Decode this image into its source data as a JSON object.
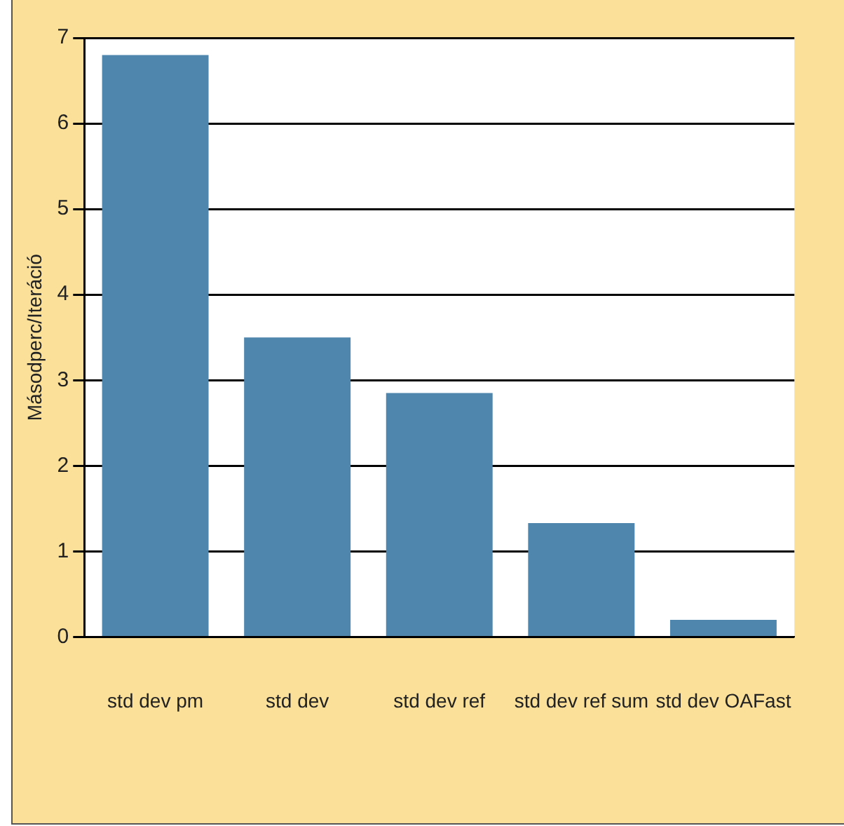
{
  "chart_data": {
    "type": "bar",
    "ylabel": "Másodperc/Iteráció",
    "categories": [
      "std dev pm",
      "std dev",
      "std dev ref",
      "std dev ref sum",
      "std dev OAFast"
    ],
    "values": [
      6.8,
      3.5,
      2.85,
      1.33,
      0.2
    ],
    "color": "#4f86ae",
    "ylim": [
      0,
      7
    ],
    "yticks": [
      0,
      1,
      2,
      3,
      4,
      5,
      6,
      7
    ],
    "grid": "y"
  }
}
